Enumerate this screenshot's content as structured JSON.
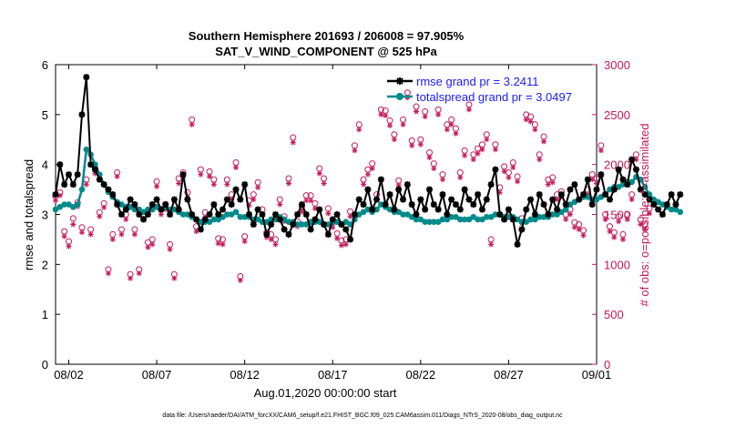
{
  "chart_data": {
    "type": "line",
    "title_line1": "Southern Hemisphere 201693 / 206008 = 97.905%",
    "title_line2": "SAT_V_WIND_COMPONENT @ 525 hPa",
    "xlabel": "Aug.01,2020 00:00:00 start",
    "ylabel_left": "rmse and totalspread",
    "ylabel_right": "# of obs: o=possible; *=assimilated",
    "footer": "data file: /Users/raeder/DAI/ATM_forcXX/CAM6_setup/f.e21.FHIST_BGC.f09_025.CAM6assim.011/Diags_NTrS_2020-08/obs_diag_output.nc",
    "x_ticks": [
      {
        "day": 1,
        "label": "08/02"
      },
      {
        "day": 6,
        "label": "08/07"
      },
      {
        "day": 11,
        "label": "08/12"
      },
      {
        "day": 16,
        "label": "08/17"
      },
      {
        "day": 21,
        "label": "08/22"
      },
      {
        "day": 26,
        "label": "08/27"
      },
      {
        "day": 31,
        "label": "09/01"
      }
    ],
    "xlim": [
      0.25,
      31.0
    ],
    "ylim_left": [
      0,
      6
    ],
    "yticks_left": [
      "0",
      "1",
      "2",
      "3",
      "4",
      "5",
      "6"
    ],
    "ylim_right": [
      0,
      3000
    ],
    "yticks_right": [
      "0",
      "500",
      "1000",
      "1500",
      "2000",
      "2500",
      "3000"
    ],
    "colors": {
      "rmse": "#000000",
      "spread": "#008b8b",
      "obs": "#c2185b",
      "legend_text": "#1a1aff"
    },
    "legend": [
      {
        "name": "rmse",
        "label": "rmse grand pr = 3.2411"
      },
      {
        "name": "spread",
        "label": "totalspread grand pr = 3.0497"
      }
    ],
    "series": [
      {
        "name": "rmse",
        "start_day": 0.25,
        "step": 0.25,
        "values": [
          3.4,
          4.0,
          3.6,
          3.8,
          3.6,
          3.8,
          5.0,
          5.75,
          4.0,
          3.9,
          3.7,
          3.6,
          3.5,
          3.4,
          3.2,
          3.0,
          3.1,
          3.3,
          3.2,
          3.0,
          2.9,
          3.0,
          3.2,
          3.3,
          3.1,
          3.2,
          3.0,
          3.3,
          3.1,
          3.8,
          3.3,
          3.0,
          2.9,
          2.7,
          2.9,
          3.0,
          3.2,
          3.0,
          3.1,
          3.3,
          3.2,
          3.5,
          3.3,
          3.6,
          3.0,
          2.8,
          3.1,
          3.0,
          2.6,
          2.8,
          3.0,
          2.9,
          2.7,
          2.6,
          2.8,
          3.0,
          3.2,
          3.0,
          2.7,
          2.9,
          3.1,
          2.8,
          2.6,
          2.9,
          3.0,
          2.8,
          2.7,
          2.5,
          3.0,
          3.3,
          3.2,
          3.5,
          3.1,
          3.3,
          3.7,
          3.2,
          3.4,
          3.1,
          3.5,
          3.3,
          3.6,
          3.2,
          3.0,
          3.3,
          3.1,
          3.5,
          3.2,
          3.1,
          3.4,
          3.0,
          3.3,
          3.2,
          3.1,
          3.5,
          3.3,
          3.2,
          3.4,
          3.1,
          3.3,
          3.6,
          3.9,
          3.0,
          2.9,
          3.1,
          2.9,
          2.4,
          2.7,
          3.1,
          3.3,
          3.0,
          3.4,
          3.2,
          3.0,
          3.3,
          3.1,
          3.4,
          3.2,
          3.5,
          3.6,
          3.3,
          3.4,
          3.7,
          3.2,
          3.5,
          3.8,
          3.4,
          3.3,
          3.5,
          3.9,
          3.7,
          3.6,
          4.1,
          3.9,
          3.5,
          3.4,
          3.3,
          3.2,
          3.1,
          3.0,
          3.2,
          3.4,
          3.2,
          3.4
        ]
      },
      {
        "name": "totalspread",
        "start_day": 0.25,
        "step": 0.25,
        "values": [
          3.1,
          3.15,
          3.2,
          3.2,
          3.15,
          3.2,
          3.5,
          4.3,
          4.2,
          4.0,
          3.8,
          3.6,
          3.45,
          3.35,
          3.25,
          3.2,
          3.15,
          3.15,
          3.1,
          3.1,
          3.05,
          3.1,
          3.1,
          3.15,
          3.1,
          3.15,
          3.1,
          3.1,
          3.05,
          3.0,
          3.0,
          2.95,
          2.9,
          2.85,
          2.85,
          2.85,
          2.9,
          2.9,
          2.95,
          3.0,
          3.0,
          3.05,
          2.95,
          2.95,
          2.95,
          2.9,
          2.9,
          2.85,
          2.85,
          2.9,
          2.9,
          2.95,
          2.9,
          2.85,
          2.85,
          2.8,
          2.8,
          2.8,
          2.85,
          2.85,
          2.85,
          2.8,
          2.8,
          2.85,
          2.85,
          2.8,
          2.85,
          2.8,
          2.9,
          3.0,
          3.05,
          3.1,
          3.05,
          3.1,
          3.2,
          3.15,
          3.1,
          3.05,
          3.05,
          3.0,
          3.0,
          2.95,
          2.9,
          2.9,
          2.85,
          2.85,
          2.85,
          2.85,
          2.9,
          2.9,
          2.95,
          2.95,
          2.9,
          2.9,
          2.9,
          2.95,
          2.9,
          2.9,
          2.95,
          2.95,
          3.0,
          3.0,
          2.95,
          2.95,
          2.95,
          2.9,
          2.85,
          2.85,
          2.9,
          2.9,
          2.95,
          2.95,
          2.95,
          3.0,
          3.0,
          3.05,
          3.1,
          3.2,
          3.25,
          3.3,
          3.35,
          3.35,
          3.3,
          3.3,
          3.35,
          3.4,
          3.5,
          3.55,
          3.55,
          3.6,
          3.65,
          3.65,
          3.75,
          3.7,
          3.55,
          3.4,
          3.3,
          3.25,
          3.2,
          3.15,
          3.1,
          3.1,
          3.05
        ]
      },
      {
        "name": "obs_possible",
        "start_day": 0.25,
        "step": 0.25,
        "values": [
          1680,
          1720,
          1330,
          1230,
          1460,
          1620,
          1370,
          1850,
          1350,
          1960,
          1520,
          1610,
          950,
          1300,
          1920,
          1350,
          1500,
          900,
          1350,
          950,
          1500,
          1220,
          1250,
          1830,
          1550,
          1600,
          1200,
          900,
          1860,
          1920,
          1720,
          2450,
          1380,
          1950,
          1520,
          1930,
          1850,
          1260,
          1250,
          1850,
          1700,
          2020,
          880,
          1280,
          1640,
          1700,
          1820,
          1550,
          1320,
          1300,
          1250,
          1650,
          1480,
          1860,
          2270,
          1430,
          1580,
          1690,
          1690,
          1610,
          1960,
          1860,
          1560,
          1420,
          1310,
          1240,
          1250,
          1530,
          2190,
          2400,
          1850,
          1950,
          2010,
          1700,
          2550,
          2540,
          2440,
          2300,
          1840,
          2450,
          2720,
          2240,
          2580,
          2250,
          2530,
          2120,
          2010,
          2550,
          1900,
          2400,
          2450,
          2360,
          1920,
          2140,
          2600,
          2100,
          2160,
          2200,
          2300,
          1250,
          2200,
          1770,
          1980,
          1920,
          2020,
          1880,
          1460,
          2500,
          2480,
          2400,
          2100,
          2280,
          1850,
          1870,
          1700,
          1730,
          1500,
          1550,
          1420,
          1400,
          1340,
          1750,
          1900,
          1860,
          2190,
          1500,
          1380,
          1320,
          1480,
          1300,
          1500,
          1700,
          2100,
          1450,
          1400,
          1560
        ]
      },
      {
        "name": "obs_assimilated",
        "start_day": 0.25,
        "step": 0.25,
        "values": [
          1640,
          1690,
          1280,
          1180,
          1400,
          1580,
          1320,
          1800,
          1300,
          1910,
          1480,
          1570,
          910,
          1250,
          1880,
          1300,
          1450,
          860,
          1300,
          910,
          1460,
          1170,
          1200,
          1780,
          1500,
          1550,
          1150,
          860,
          1810,
          1870,
          1670,
          2400,
          1330,
          1900,
          1470,
          1880,
          1800,
          1210,
          1200,
          1800,
          1650,
          1970,
          840,
          1230,
          1590,
          1650,
          1770,
          1500,
          1270,
          1250,
          1200,
          1600,
          1430,
          1810,
          2220,
          1380,
          1530,
          1640,
          1640,
          1560,
          1910,
          1810,
          1510,
          1370,
          1260,
          1190,
          1200,
          1480,
          2140,
          2350,
          1800,
          1900,
          1960,
          1650,
          2500,
          2490,
          2390,
          2250,
          1790,
          2400,
          2670,
          2190,
          2530,
          2200,
          2480,
          2070,
          1960,
          2500,
          1850,
          2350,
          2400,
          2310,
          1870,
          2090,
          2550,
          2050,
          2110,
          2150,
          2250,
          1200,
          2150,
          1720,
          1930,
          1870,
          1970,
          1830,
          1410,
          2450,
          2430,
          2350,
          2050,
          2230,
          1800,
          1820,
          1650,
          1680,
          1450,
          1500,
          1370,
          1350,
          1290,
          1700,
          1850,
          1810,
          2140,
          1450,
          1330,
          1270,
          1430,
          1250,
          1450,
          1650,
          2050,
          1400,
          1350,
          1510
        ]
      }
    ]
  }
}
